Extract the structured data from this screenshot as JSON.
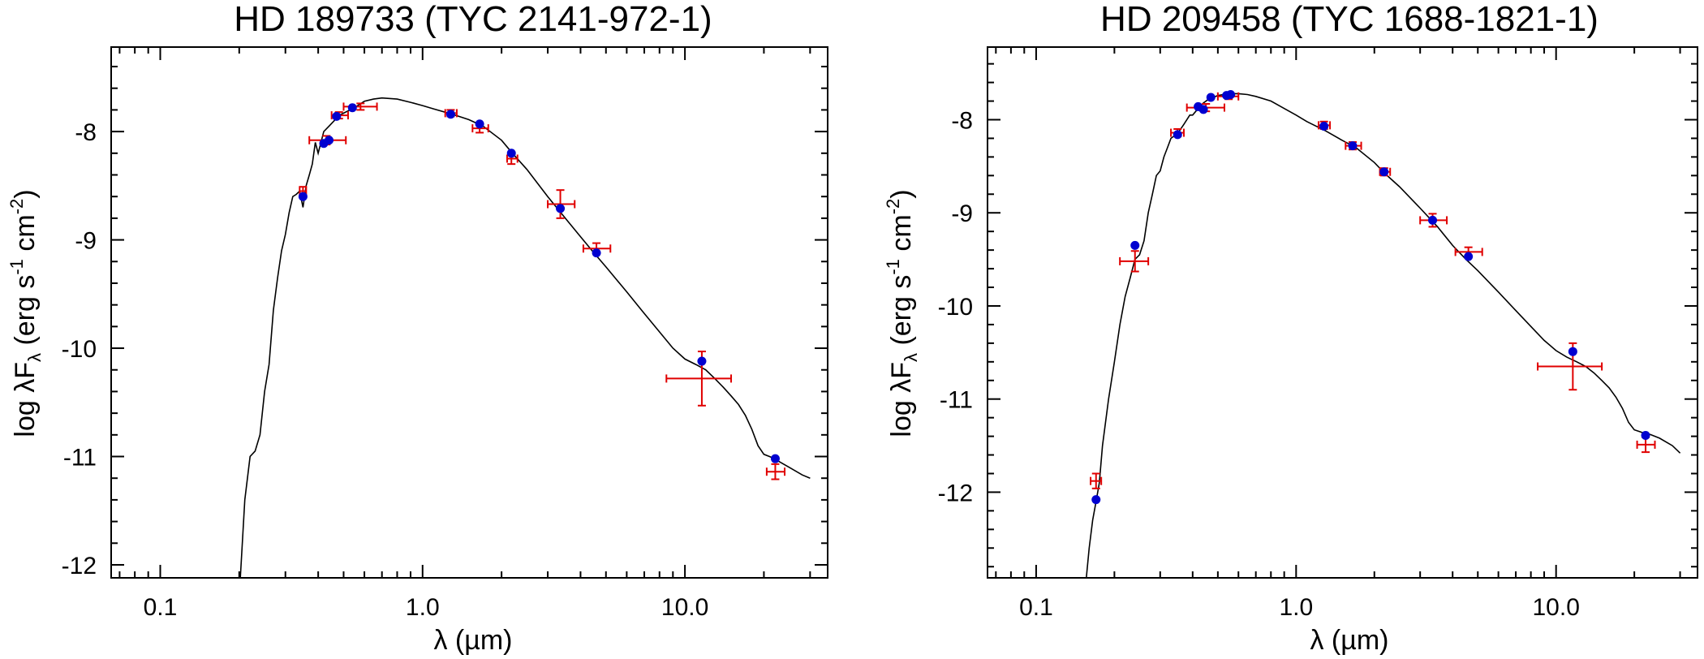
{
  "chart_data": [
    {
      "type": "scatter",
      "title": "HD 189733 (TYC 2141-972-1)",
      "xlabel": "λ (µm)",
      "ylabel": {
        "main": "log λF",
        "sub": "λ",
        "unit_open": " (erg s",
        "sup1": "-1",
        "unit_mid": " cm",
        "sup2": "-2",
        "unit_close": ")"
      },
      "xscale": "log",
      "xlim": [
        0.065,
        35
      ],
      "ylim": [
        -12.12,
        -7.22
      ],
      "xticks": [
        0.1,
        1.0,
        10.0
      ],
      "xtick_labels": [
        "0.1",
        "1.0",
        "10.0"
      ],
      "yticks": [
        -12,
        -11,
        -10,
        -9,
        -8
      ],
      "ytick_labels": [
        "-12",
        "-11",
        "-10",
        "-9",
        "-8"
      ],
      "model": {
        "name": "stellar model spectrum",
        "x": [
          0.2,
          0.21,
          0.22,
          0.23,
          0.24,
          0.25,
          0.26,
          0.27,
          0.28,
          0.29,
          0.3,
          0.31,
          0.32,
          0.33,
          0.34,
          0.35,
          0.36,
          0.37,
          0.38,
          0.39,
          0.4,
          0.42,
          0.44,
          0.46,
          0.48,
          0.5,
          0.55,
          0.6,
          0.65,
          0.7,
          0.8,
          0.9,
          1.0,
          1.1,
          1.3,
          1.5,
          1.7,
          2.0,
          2.2,
          2.5,
          3.0,
          3.5,
          4.0,
          4.5,
          5.0,
          6,
          7,
          8,
          9,
          10,
          11,
          12,
          13,
          14,
          15,
          16,
          17,
          18,
          19,
          20,
          21,
          22,
          23,
          25,
          28,
          30
        ],
        "y": [
          -12.3,
          -11.4,
          -11.0,
          -10.95,
          -10.8,
          -10.4,
          -10.15,
          -9.65,
          -9.35,
          -9.1,
          -8.95,
          -8.75,
          -8.6,
          -8.58,
          -8.55,
          -8.7,
          -8.5,
          -8.4,
          -8.3,
          -8.1,
          -8.2,
          -8.0,
          -7.95,
          -7.9,
          -7.85,
          -7.83,
          -7.78,
          -7.72,
          -7.7,
          -7.69,
          -7.7,
          -7.73,
          -7.76,
          -7.79,
          -7.84,
          -7.89,
          -7.95,
          -8.08,
          -8.2,
          -8.35,
          -8.6,
          -8.8,
          -8.97,
          -9.12,
          -9.25,
          -9.48,
          -9.68,
          -9.85,
          -10.0,
          -10.1,
          -10.15,
          -10.2,
          -10.28,
          -10.36,
          -10.44,
          -10.52,
          -10.62,
          -10.75,
          -10.9,
          -10.98,
          -11.0,
          -11.02,
          -11.05,
          -11.1,
          -11.17,
          -11.2
        ]
      },
      "model_points": {
        "name": "synthetic photometry",
        "x": [
          0.35,
          0.42,
          0.44,
          0.47,
          0.54,
          1.28,
          1.65,
          2.18,
          3.35,
          4.6,
          11.6,
          22.1
        ],
        "y": [
          -8.6,
          -8.11,
          -8.08,
          -7.86,
          -7.78,
          -7.84,
          -7.93,
          -8.2,
          -8.71,
          -9.12,
          -10.12,
          -11.02
        ]
      },
      "observed": {
        "name": "observed photometry",
        "x": [
          0.35,
          0.43,
          0.48,
          0.58,
          1.28,
          1.65,
          2.18,
          3.35,
          4.6,
          11.6,
          22.1
        ],
        "y": [
          -8.55,
          -8.08,
          -7.85,
          -7.77,
          -7.83,
          -7.97,
          -8.25,
          -8.67,
          -9.08,
          -10.28,
          -11.14
        ],
        "x_lo": [
          0.34,
          0.37,
          0.45,
          0.5,
          1.22,
          1.55,
          2.1,
          3.0,
          4.1,
          8.5,
          20.5
        ],
        "x_hi": [
          0.36,
          0.51,
          0.52,
          0.67,
          1.35,
          1.78,
          2.3,
          3.8,
          5.2,
          15.0,
          24.0
        ],
        "y_err": [
          0.04,
          0.04,
          0.03,
          0.03,
          0.03,
          0.04,
          0.05,
          0.13,
          0.05,
          0.25,
          0.07
        ]
      },
      "colors": {
        "model": "#000000",
        "points": "#0000d0",
        "observed": "#e00000"
      }
    },
    {
      "type": "scatter",
      "title": "HD 209458 (TYC 1688-1821-1)",
      "xlabel": "λ (µm)",
      "ylabel": {
        "main": "log λF",
        "sub": "λ",
        "unit_open": " (erg s",
        "sup1": "-1",
        "unit_mid": " cm",
        "sup2": "-2",
        "unit_close": ")"
      },
      "xscale": "log",
      "xlim": [
        0.065,
        35
      ],
      "ylim": [
        -12.92,
        -7.22
      ],
      "xticks": [
        0.1,
        1.0,
        10.0
      ],
      "xtick_labels": [
        "0.1",
        "1.0",
        "10.0"
      ],
      "yticks": [
        -12,
        -11,
        -10,
        -9,
        -8
      ],
      "ytick_labels": [
        "-12",
        "-11",
        "-10",
        "-9",
        "-8"
      ],
      "model": {
        "name": "stellar model spectrum",
        "x": [
          0.155,
          0.16,
          0.165,
          0.17,
          0.175,
          0.18,
          0.19,
          0.2,
          0.21,
          0.22,
          0.23,
          0.24,
          0.25,
          0.26,
          0.27,
          0.28,
          0.29,
          0.3,
          0.31,
          0.32,
          0.33,
          0.35,
          0.37,
          0.39,
          0.4,
          0.42,
          0.44,
          0.46,
          0.5,
          0.55,
          0.6,
          0.65,
          0.7,
          0.8,
          0.9,
          1.0,
          1.1,
          1.3,
          1.5,
          1.7,
          2.0,
          2.2,
          2.5,
          3.0,
          3.5,
          4.0,
          4.5,
          5.0,
          6,
          7,
          8,
          9,
          10,
          11,
          12,
          13,
          14,
          15,
          16,
          17,
          18,
          19,
          20,
          21,
          22,
          23,
          25,
          28,
          30
        ],
        "y": [
          -13.0,
          -12.6,
          -12.3,
          -12.1,
          -11.9,
          -11.5,
          -11.0,
          -10.6,
          -10.2,
          -9.9,
          -9.7,
          -9.5,
          -9.45,
          -9.3,
          -9.0,
          -8.8,
          -8.6,
          -8.55,
          -8.4,
          -8.3,
          -8.2,
          -8.15,
          -8.05,
          -7.95,
          -7.95,
          -7.88,
          -7.82,
          -7.78,
          -7.74,
          -7.72,
          -7.72,
          -7.73,
          -7.75,
          -7.8,
          -7.88,
          -7.95,
          -8.02,
          -8.12,
          -8.22,
          -8.3,
          -8.46,
          -8.58,
          -8.72,
          -8.95,
          -9.15,
          -9.35,
          -9.5,
          -9.62,
          -9.85,
          -10.05,
          -10.22,
          -10.37,
          -10.48,
          -10.55,
          -10.6,
          -10.65,
          -10.72,
          -10.8,
          -10.88,
          -10.98,
          -11.1,
          -11.25,
          -11.33,
          -11.35,
          -11.37,
          -11.38,
          -11.42,
          -11.5,
          -11.58
        ]
      },
      "model_points": {
        "name": "synthetic photometry",
        "x": [
          0.17,
          0.24,
          0.35,
          0.42,
          0.44,
          0.47,
          0.54,
          0.56,
          1.28,
          1.65,
          2.18,
          3.35,
          4.6,
          11.6,
          22.1
        ],
        "y": [
          -12.08,
          -9.35,
          -8.16,
          -7.86,
          -7.89,
          -7.76,
          -7.74,
          -7.73,
          -8.07,
          -8.28,
          -8.56,
          -9.08,
          -9.47,
          -10.49,
          -11.39
        ]
      },
      "observed": {
        "name": "observed photometry",
        "x": [
          0.17,
          0.24,
          0.35,
          0.45,
          0.55,
          1.28,
          1.65,
          2.18,
          3.35,
          4.6,
          11.6,
          22.1
        ],
        "y": [
          -11.88,
          -9.52,
          -8.14,
          -7.87,
          -7.75,
          -8.06,
          -8.28,
          -8.56,
          -9.08,
          -9.42,
          -10.65,
          -11.49
        ],
        "x_lo": [
          0.162,
          0.21,
          0.33,
          0.38,
          0.5,
          1.22,
          1.55,
          2.1,
          3.0,
          4.1,
          8.5,
          20.5
        ],
        "x_hi": [
          0.178,
          0.27,
          0.37,
          0.53,
          0.6,
          1.35,
          1.78,
          2.3,
          3.8,
          5.2,
          15.0,
          24.0
        ],
        "y_err": [
          0.08,
          0.11,
          0.04,
          0.04,
          0.03,
          0.04,
          0.04,
          0.04,
          0.07,
          0.05,
          0.25,
          0.08
        ]
      },
      "colors": {
        "model": "#000000",
        "points": "#0000d0",
        "observed": "#e00000"
      }
    }
  ]
}
